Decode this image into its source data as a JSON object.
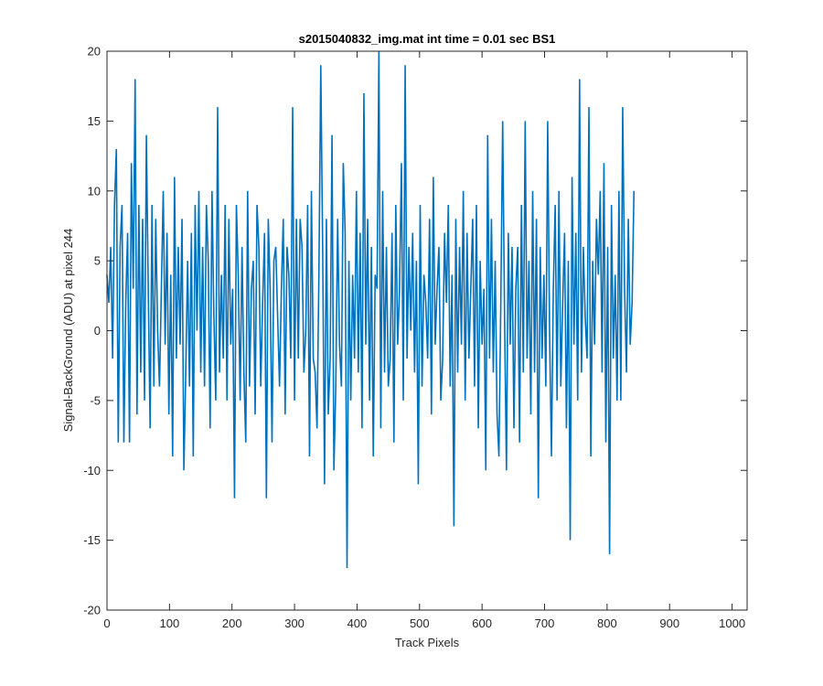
{
  "chart_data": {
    "type": "line",
    "title": "s2015040832_img.mat int time = 0.01 sec   BS1",
    "xlabel": "Track Pixels",
    "ylabel": "Signal-BackGround (ADU) at pixel 244",
    "xlim": [
      0,
      1024
    ],
    "ylim": [
      -20,
      20
    ],
    "xticks": [
      0,
      100,
      200,
      300,
      400,
      500,
      600,
      700,
      800,
      900,
      1000
    ],
    "yticks": [
      -20,
      -15,
      -10,
      -5,
      0,
      5,
      10,
      15,
      20
    ],
    "grid": false,
    "legend": "none",
    "series_color": "#0072bd",
    "series": [
      {
        "x_start": 0,
        "x_step": 3,
        "values": [
          4,
          2,
          6,
          -2,
          9,
          13,
          -8,
          6,
          9,
          -8,
          2,
          7,
          -8,
          12,
          3,
          18,
          -6,
          9,
          -3,
          8,
          -5,
          14,
          3,
          -7,
          9,
          -4,
          8,
          0,
          -4,
          3,
          10,
          -1,
          7,
          -6,
          4,
          -9,
          11,
          -2,
          6,
          -1,
          8,
          -10,
          -3,
          5,
          -4,
          7,
          -9,
          9,
          0,
          10,
          -3,
          6,
          -4,
          9,
          5,
          -7,
          10,
          1,
          -5,
          16,
          -3,
          4,
          -2,
          9,
          -5,
          8,
          -1,
          3,
          -12,
          9,
          4,
          -5,
          6,
          -3,
          -8,
          10,
          -4,
          3,
          5,
          -6,
          9,
          6,
          -4,
          2,
          7,
          -12,
          8,
          3,
          -8,
          5,
          6,
          1,
          -4,
          3,
          8,
          -6,
          6,
          4,
          -2,
          16,
          -5,
          8,
          -2,
          8,
          6,
          -3,
          0,
          9,
          -9,
          10,
          -2,
          -3,
          -7,
          4,
          19,
          6,
          -11,
          8,
          -6,
          -2,
          14,
          -10,
          -4,
          8,
          -1,
          -4,
          12,
          7,
          -17,
          5,
          -5,
          4,
          -2,
          10,
          -3,
          7,
          -7,
          17,
          -1,
          8,
          -5,
          6,
          -9,
          4,
          3,
          20,
          -7,
          10,
          -3,
          6,
          -4,
          -2,
          7,
          -8,
          9,
          -1,
          3,
          12,
          -5,
          19,
          -2,
          6,
          0,
          7,
          -3,
          5,
          -11,
          9,
          -4,
          4,
          2,
          -2,
          8,
          -6,
          11,
          -1,
          3,
          6,
          -5,
          -2,
          7,
          2,
          9,
          -4,
          4,
          -14,
          8,
          -3,
          6,
          -1,
          10,
          -5,
          7,
          -2,
          3,
          8,
          -4,
          9,
          -7,
          5,
          -1,
          3,
          -10,
          14,
          -2,
          8,
          -3,
          5,
          -6,
          -9,
          2,
          15,
          1,
          -10,
          7,
          -1,
          6,
          -7,
          3,
          6,
          -8,
          9,
          -3,
          15,
          -2,
          5,
          -6,
          10,
          -3,
          8,
          -12,
          6,
          -2,
          4,
          -4,
          15,
          0,
          -9,
          3,
          9,
          -5,
          10,
          -4,
          2,
          7,
          -7,
          5,
          -15,
          11,
          -1,
          7,
          -5,
          18,
          -3,
          6,
          1,
          -2,
          16,
          -9,
          5,
          -1,
          8,
          4,
          10,
          -3,
          12,
          -8,
          6,
          -16,
          9,
          -2,
          4,
          -5,
          10,
          -5,
          16,
          3,
          -3,
          8,
          -1,
          2,
          10
        ]
      }
    ]
  }
}
